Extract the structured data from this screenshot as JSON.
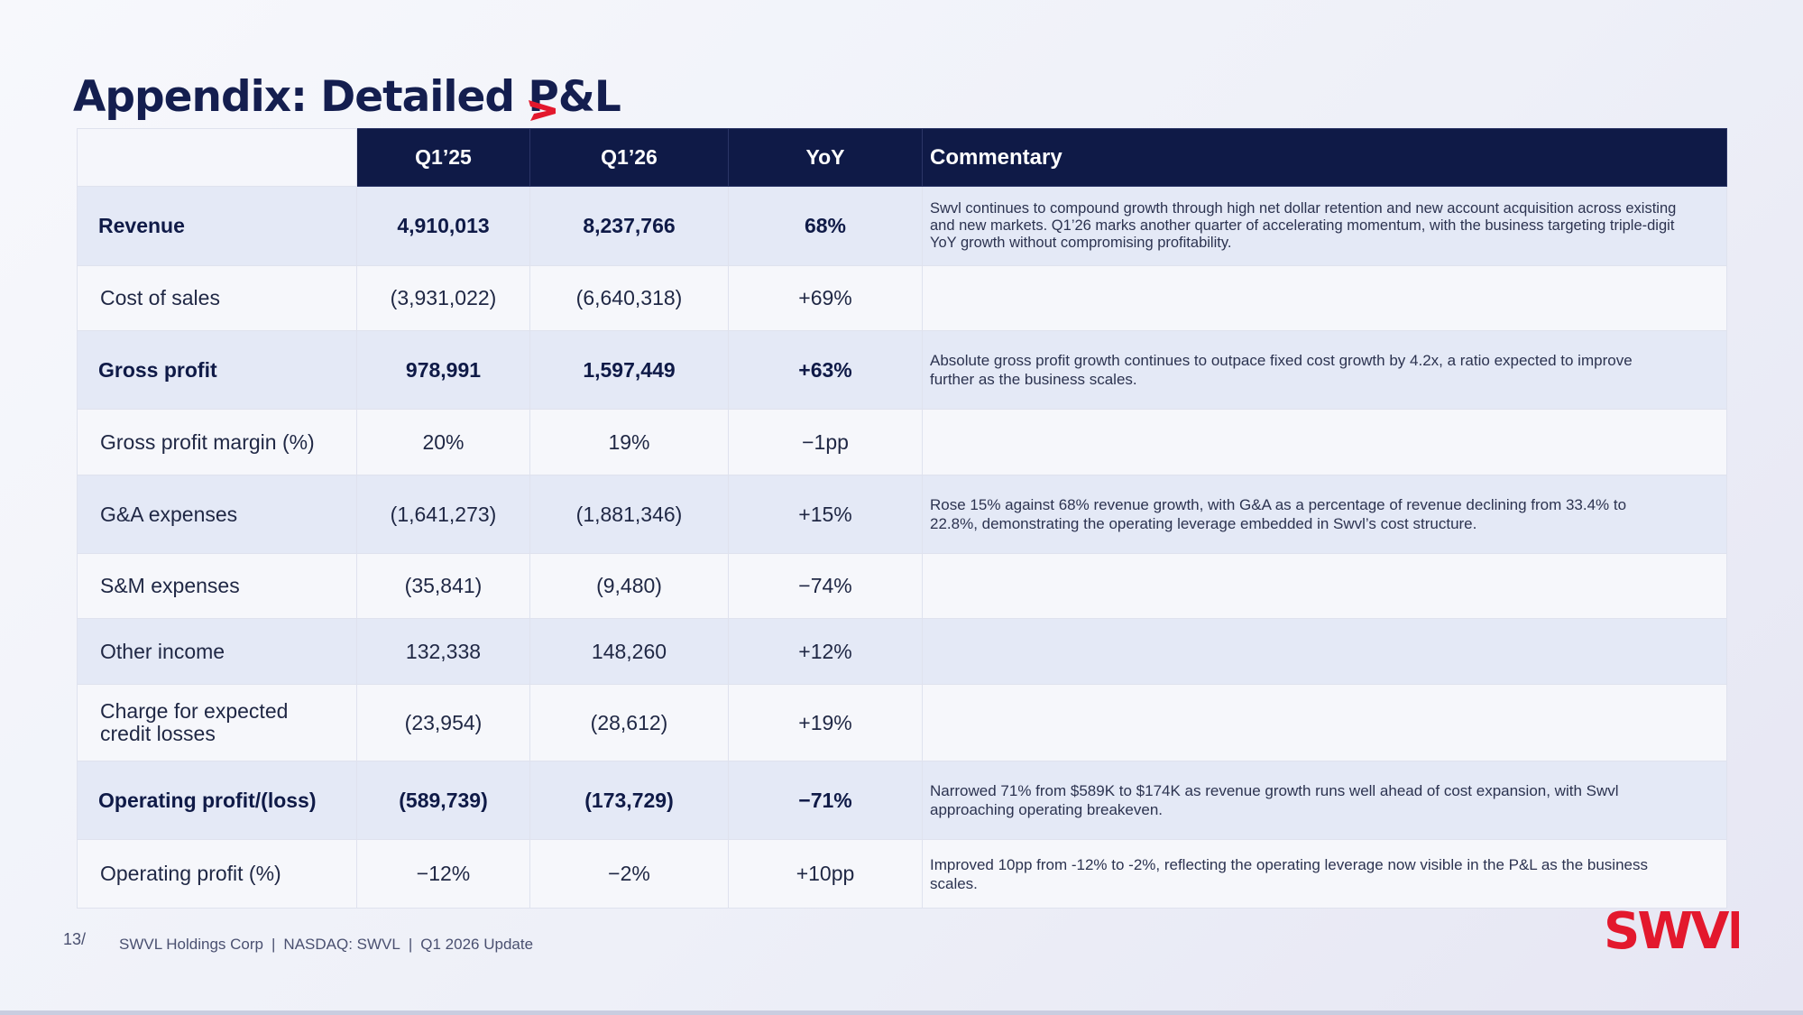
{
  "title": "Appendix: Detailed P&L",
  "colors": {
    "navy": "#0f1a47",
    "accent_red": "#e3182d"
  },
  "icons": {
    "title_accent": "red-chevron-icon",
    "logo": "swvl-logo"
  },
  "table": {
    "headers": [
      "",
      "Q1’25",
      "Q1’26",
      "YoY",
      "Commentary"
    ],
    "rows": [
      {
        "label": "Revenue",
        "q1_25": "4,910,013",
        "q1_26": "8,237,766",
        "yoy": "68%",
        "commentary": "Swvl continues to compound growth through high net dollar retention and new account acquisition across existing and new markets. Q1’26 marks another quarter of accelerating momentum, with the business targeting triple-digit YoY growth without compromising profitability."
      },
      {
        "label": "Cost of sales",
        "q1_25": "(3,931,022)",
        "q1_26": "(6,640,318)",
        "yoy": "+69%",
        "commentary": ""
      },
      {
        "label": "Gross profit",
        "q1_25": "978,991",
        "q1_26": "1,597,449",
        "yoy": "+63%",
        "commentary": "Absolute gross profit growth continues to outpace fixed cost growth by 4.2x, a ratio expected to improve further as the business scales."
      },
      {
        "label": "Gross profit margin (%)",
        "q1_25": "20%",
        "q1_26": "19%",
        "yoy": "−1pp",
        "commentary": ""
      },
      {
        "label": "G&A expenses",
        "q1_25": "(1,641,273)",
        "q1_26": "(1,881,346)",
        "yoy": "+15%",
        "commentary": "Rose 15% against 68% revenue growth, with G&A as a percentage of revenue declining from 33.4% to 22.8%, demonstrating the operating leverage embedded in Swvl’s cost structure."
      },
      {
        "label": "S&M expenses",
        "q1_25": "(35,841)",
        "q1_26": "(9,480)",
        "yoy": "−74%",
        "commentary": ""
      },
      {
        "label": "Other income",
        "q1_25": "132,338",
        "q1_26": "148,260",
        "yoy": "+12%",
        "commentary": ""
      },
      {
        "label": "Charge for expected credit losses",
        "q1_25": "(23,954)",
        "q1_26": "(28,612)",
        "yoy": "+19%",
        "commentary": ""
      },
      {
        "label": "Operating profit/(loss)",
        "q1_25": "(589,739)",
        "q1_26": "(173,729)",
        "yoy": "−71%",
        "commentary": "Narrowed 71% from $589K to $174K as revenue growth runs well ahead of cost expansion, with Swvl approaching operating breakeven."
      },
      {
        "label": "Operating profit (%)",
        "q1_25": "−12%",
        "q1_26": "−2%",
        "yoy": "+10pp",
        "commentary": "Improved 10pp from -12% to -2%, reflecting the operating leverage now visible in the P&L as the business scales."
      }
    ]
  },
  "footer": {
    "page": "13/",
    "company": "SWVL Holdings Corp",
    "ticker": "NASDAQ: SWVL",
    "update": "Q1 2026 Update",
    "separator": "|"
  },
  "logo_text": "SWVL"
}
